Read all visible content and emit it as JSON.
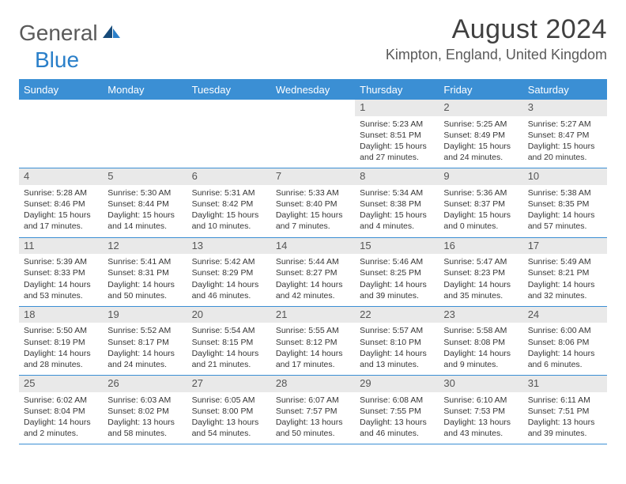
{
  "logo": {
    "word1": "General",
    "word2": "Blue"
  },
  "colors": {
    "accent": "#3b8fd4",
    "logo_gray": "#5a5a5a",
    "logo_blue": "#2a7fc9",
    "daynum_bg": "#e9e9e9",
    "text": "#363636"
  },
  "header": {
    "month_title": "August 2024",
    "location": "Kimpton, England, United Kingdom"
  },
  "weekdays": [
    "Sunday",
    "Monday",
    "Tuesday",
    "Wednesday",
    "Thursday",
    "Friday",
    "Saturday"
  ],
  "weeks": [
    [
      {
        "n": "",
        "sunrise": "",
        "sunset": "",
        "daylight": ""
      },
      {
        "n": "",
        "sunrise": "",
        "sunset": "",
        "daylight": ""
      },
      {
        "n": "",
        "sunrise": "",
        "sunset": "",
        "daylight": ""
      },
      {
        "n": "",
        "sunrise": "",
        "sunset": "",
        "daylight": ""
      },
      {
        "n": "1",
        "sunrise": "Sunrise: 5:23 AM",
        "sunset": "Sunset: 8:51 PM",
        "daylight": "Daylight: 15 hours and 27 minutes."
      },
      {
        "n": "2",
        "sunrise": "Sunrise: 5:25 AM",
        "sunset": "Sunset: 8:49 PM",
        "daylight": "Daylight: 15 hours and 24 minutes."
      },
      {
        "n": "3",
        "sunrise": "Sunrise: 5:27 AM",
        "sunset": "Sunset: 8:47 PM",
        "daylight": "Daylight: 15 hours and 20 minutes."
      }
    ],
    [
      {
        "n": "4",
        "sunrise": "Sunrise: 5:28 AM",
        "sunset": "Sunset: 8:46 PM",
        "daylight": "Daylight: 15 hours and 17 minutes."
      },
      {
        "n": "5",
        "sunrise": "Sunrise: 5:30 AM",
        "sunset": "Sunset: 8:44 PM",
        "daylight": "Daylight: 15 hours and 14 minutes."
      },
      {
        "n": "6",
        "sunrise": "Sunrise: 5:31 AM",
        "sunset": "Sunset: 8:42 PM",
        "daylight": "Daylight: 15 hours and 10 minutes."
      },
      {
        "n": "7",
        "sunrise": "Sunrise: 5:33 AM",
        "sunset": "Sunset: 8:40 PM",
        "daylight": "Daylight: 15 hours and 7 minutes."
      },
      {
        "n": "8",
        "sunrise": "Sunrise: 5:34 AM",
        "sunset": "Sunset: 8:38 PM",
        "daylight": "Daylight: 15 hours and 4 minutes."
      },
      {
        "n": "9",
        "sunrise": "Sunrise: 5:36 AM",
        "sunset": "Sunset: 8:37 PM",
        "daylight": "Daylight: 15 hours and 0 minutes."
      },
      {
        "n": "10",
        "sunrise": "Sunrise: 5:38 AM",
        "sunset": "Sunset: 8:35 PM",
        "daylight": "Daylight: 14 hours and 57 minutes."
      }
    ],
    [
      {
        "n": "11",
        "sunrise": "Sunrise: 5:39 AM",
        "sunset": "Sunset: 8:33 PM",
        "daylight": "Daylight: 14 hours and 53 minutes."
      },
      {
        "n": "12",
        "sunrise": "Sunrise: 5:41 AM",
        "sunset": "Sunset: 8:31 PM",
        "daylight": "Daylight: 14 hours and 50 minutes."
      },
      {
        "n": "13",
        "sunrise": "Sunrise: 5:42 AM",
        "sunset": "Sunset: 8:29 PM",
        "daylight": "Daylight: 14 hours and 46 minutes."
      },
      {
        "n": "14",
        "sunrise": "Sunrise: 5:44 AM",
        "sunset": "Sunset: 8:27 PM",
        "daylight": "Daylight: 14 hours and 42 minutes."
      },
      {
        "n": "15",
        "sunrise": "Sunrise: 5:46 AM",
        "sunset": "Sunset: 8:25 PM",
        "daylight": "Daylight: 14 hours and 39 minutes."
      },
      {
        "n": "16",
        "sunrise": "Sunrise: 5:47 AM",
        "sunset": "Sunset: 8:23 PM",
        "daylight": "Daylight: 14 hours and 35 minutes."
      },
      {
        "n": "17",
        "sunrise": "Sunrise: 5:49 AM",
        "sunset": "Sunset: 8:21 PM",
        "daylight": "Daylight: 14 hours and 32 minutes."
      }
    ],
    [
      {
        "n": "18",
        "sunrise": "Sunrise: 5:50 AM",
        "sunset": "Sunset: 8:19 PM",
        "daylight": "Daylight: 14 hours and 28 minutes."
      },
      {
        "n": "19",
        "sunrise": "Sunrise: 5:52 AM",
        "sunset": "Sunset: 8:17 PM",
        "daylight": "Daylight: 14 hours and 24 minutes."
      },
      {
        "n": "20",
        "sunrise": "Sunrise: 5:54 AM",
        "sunset": "Sunset: 8:15 PM",
        "daylight": "Daylight: 14 hours and 21 minutes."
      },
      {
        "n": "21",
        "sunrise": "Sunrise: 5:55 AM",
        "sunset": "Sunset: 8:12 PM",
        "daylight": "Daylight: 14 hours and 17 minutes."
      },
      {
        "n": "22",
        "sunrise": "Sunrise: 5:57 AM",
        "sunset": "Sunset: 8:10 PM",
        "daylight": "Daylight: 14 hours and 13 minutes."
      },
      {
        "n": "23",
        "sunrise": "Sunrise: 5:58 AM",
        "sunset": "Sunset: 8:08 PM",
        "daylight": "Daylight: 14 hours and 9 minutes."
      },
      {
        "n": "24",
        "sunrise": "Sunrise: 6:00 AM",
        "sunset": "Sunset: 8:06 PM",
        "daylight": "Daylight: 14 hours and 6 minutes."
      }
    ],
    [
      {
        "n": "25",
        "sunrise": "Sunrise: 6:02 AM",
        "sunset": "Sunset: 8:04 PM",
        "daylight": "Daylight: 14 hours and 2 minutes."
      },
      {
        "n": "26",
        "sunrise": "Sunrise: 6:03 AM",
        "sunset": "Sunset: 8:02 PM",
        "daylight": "Daylight: 13 hours and 58 minutes."
      },
      {
        "n": "27",
        "sunrise": "Sunrise: 6:05 AM",
        "sunset": "Sunset: 8:00 PM",
        "daylight": "Daylight: 13 hours and 54 minutes."
      },
      {
        "n": "28",
        "sunrise": "Sunrise: 6:07 AM",
        "sunset": "Sunset: 7:57 PM",
        "daylight": "Daylight: 13 hours and 50 minutes."
      },
      {
        "n": "29",
        "sunrise": "Sunrise: 6:08 AM",
        "sunset": "Sunset: 7:55 PM",
        "daylight": "Daylight: 13 hours and 46 minutes."
      },
      {
        "n": "30",
        "sunrise": "Sunrise: 6:10 AM",
        "sunset": "Sunset: 7:53 PM",
        "daylight": "Daylight: 13 hours and 43 minutes."
      },
      {
        "n": "31",
        "sunrise": "Sunrise: 6:11 AM",
        "sunset": "Sunset: 7:51 PM",
        "daylight": "Daylight: 13 hours and 39 minutes."
      }
    ]
  ]
}
